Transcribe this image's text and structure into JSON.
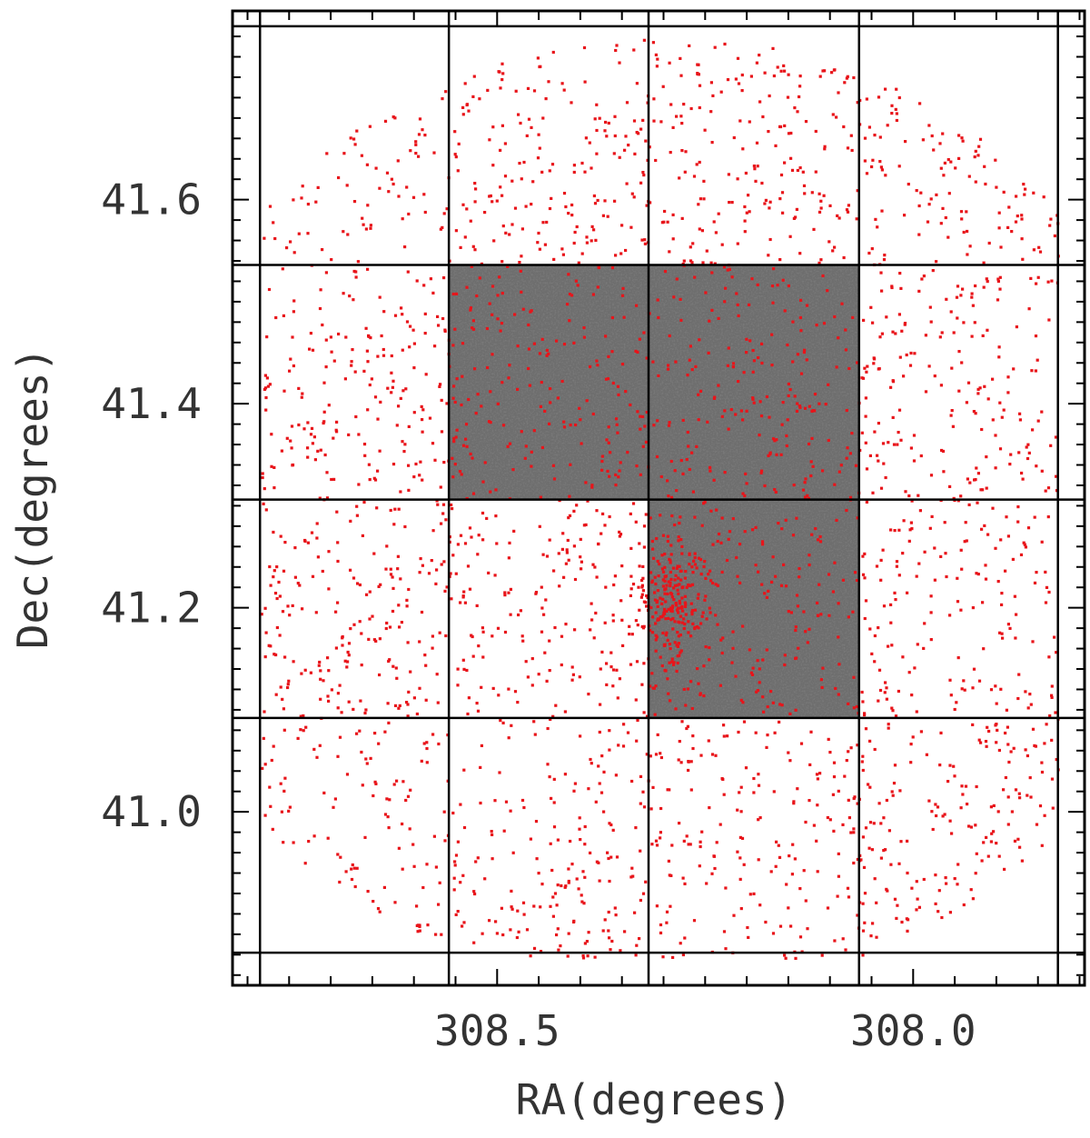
{
  "chart_data": {
    "type": "scatter",
    "title": "",
    "xlabel": "RA(degrees)",
    "ylabel": "Dec(degrees)",
    "x_reversed": true,
    "xlim": [
      308.818,
      307.794
    ],
    "ylim": [
      40.83,
      41.785
    ],
    "xticks": [
      {
        "value": 308.5,
        "label": "308.5"
      },
      {
        "value": 308.0,
        "label": "308.0"
      }
    ],
    "yticks": [
      {
        "value": 41.6,
        "label": "41.6"
      },
      {
        "value": 41.4,
        "label": "41.4"
      },
      {
        "value": 41.2,
        "label": "41.2"
      },
      {
        "value": 41.0,
        "label": "41.0"
      }
    ],
    "grid_ra": [
      308.785,
      308.558,
      308.318,
      308.065,
      307.826
    ],
    "grid_dec": [
      41.77,
      41.536,
      41.306,
      41.092,
      40.862
    ],
    "image_tiles": [
      {
        "ra": [
          308.558,
          308.318
        ],
        "dec": [
          41.306,
          41.536
        ]
      },
      {
        "ra": [
          308.318,
          308.065
        ],
        "dec": [
          41.306,
          41.536
        ]
      },
      {
        "ra": [
          308.318,
          308.065
        ],
        "dec": [
          41.092,
          41.306
        ]
      }
    ],
    "point_color": "#e8141a",
    "point_field": {
      "center_ra": 308.3,
      "center_dec": 41.29,
      "radius_deg": 0.47,
      "cluster_center": [
        308.29,
        41.2
      ],
      "approx_count": 3400
    }
  }
}
